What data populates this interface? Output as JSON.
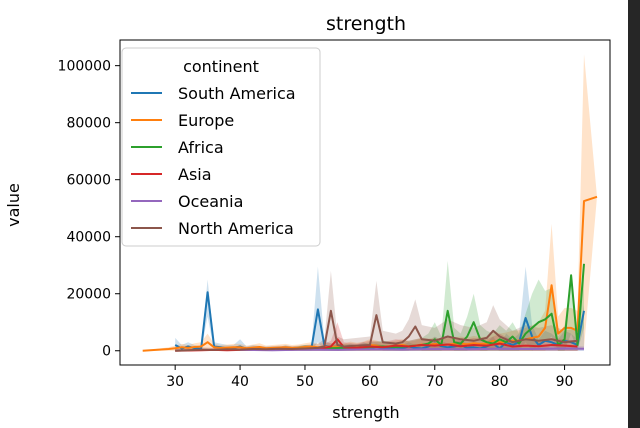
{
  "chart_data": {
    "type": "line",
    "title": "strength",
    "xlabel": "strength",
    "ylabel": "value",
    "xlim": [
      21.5,
      97.0
    ],
    "ylim": [
      -5000,
      109000
    ],
    "xticks": [
      30,
      40,
      50,
      60,
      70,
      80,
      90
    ],
    "yticks": [
      0,
      20000,
      40000,
      60000,
      80000,
      100000
    ],
    "grid": false,
    "legend": {
      "title": "continent",
      "placement": "top-left"
    },
    "series": [
      {
        "name": "South America",
        "color": "#1f77b4",
        "x": [
          30,
          31,
          32,
          33,
          34,
          35,
          36,
          37,
          38,
          39,
          40,
          41,
          42,
          44,
          45,
          46,
          47,
          48,
          49,
          50,
          51,
          52,
          53,
          54,
          55,
          56,
          57,
          58,
          59,
          60,
          61,
          62,
          63,
          64,
          65,
          66,
          67,
          68,
          69,
          70,
          71,
          72,
          73,
          74,
          75,
          76,
          77,
          78,
          79,
          80,
          81,
          82,
          83,
          84,
          85,
          86,
          87,
          88,
          89,
          90,
          91,
          92,
          93
        ],
        "y": [
          2000,
          800,
          1500,
          900,
          600,
          20500,
          1500,
          1200,
          900,
          1000,
          1500,
          700,
          900,
          600,
          700,
          600,
          900,
          700,
          800,
          900,
          1000,
          14500,
          1800,
          1200,
          1600,
          800,
          1200,
          1000,
          1500,
          900,
          1300,
          1000,
          800,
          1200,
          900,
          1500,
          1000,
          800,
          1500,
          2500,
          1600,
          1200,
          1500,
          2000,
          1000,
          1200,
          800,
          1500,
          2500,
          800,
          3000,
          2000,
          3000,
          11500,
          5000,
          2000,
          3500,
          3000,
          2000,
          3500,
          3000,
          2000,
          14000
        ],
        "lower": [
          0,
          0,
          0,
          0,
          0,
          12000,
          0,
          0,
          0,
          0,
          0,
          0,
          0,
          0,
          0,
          0,
          0,
          0,
          0,
          0,
          0,
          3000,
          0,
          0,
          0,
          0,
          0,
          0,
          0,
          0,
          0,
          0,
          0,
          0,
          0,
          0,
          0,
          0,
          0,
          0,
          0,
          0,
          0,
          0,
          0,
          0,
          0,
          0,
          0,
          0,
          0,
          0,
          0,
          3000,
          0,
          0,
          0,
          0,
          0,
          0,
          0,
          0,
          0
        ],
        "upper": [
          4500,
          2000,
          3000,
          2000,
          1500,
          25000,
          3000,
          2500,
          2000,
          2000,
          4000,
          1500,
          2000,
          1500,
          1500,
          1200,
          2000,
          1500,
          1500,
          2000,
          2000,
          29500,
          3500,
          2500,
          3000,
          1500,
          2500,
          2000,
          3000,
          2000,
          2500,
          2000,
          1500,
          2500,
          2000,
          3000,
          2000,
          1500,
          3000,
          5000,
          3500,
          2500,
          3000,
          4000,
          2000,
          2500,
          1500,
          3000,
          5000,
          1500,
          6000,
          4000,
          6000,
          29500,
          9000,
          4000,
          7000,
          6000,
          4000,
          7000,
          6000,
          4000,
          16000
        ]
      },
      {
        "name": "Europe",
        "color": "#ff7f0e",
        "x": [
          25,
          27,
          29,
          30,
          31,
          32,
          33,
          34,
          35,
          36,
          37,
          38,
          39,
          40,
          41,
          42,
          43,
          44,
          45,
          46,
          47,
          48,
          49,
          50,
          51,
          52,
          53,
          54,
          55,
          56,
          57,
          58,
          59,
          60,
          61,
          62,
          63,
          64,
          65,
          66,
          67,
          68,
          69,
          70,
          71,
          72,
          73,
          74,
          75,
          76,
          77,
          78,
          79,
          80,
          81,
          82,
          83,
          84,
          85,
          86,
          87,
          88,
          89,
          90,
          91,
          92,
          93,
          95
        ],
        "y": [
          0,
          300,
          600,
          900,
          1200,
          1000,
          1300,
          1500,
          3000,
          1200,
          1000,
          1100,
          1200,
          1200,
          900,
          1100,
          1300,
          900,
          1000,
          1100,
          1200,
          1000,
          1100,
          1300,
          1500,
          1200,
          1400,
          1300,
          1500,
          1200,
          1600,
          1400,
          1600,
          2000,
          1800,
          1400,
          1600,
          1800,
          2000,
          1600,
          1800,
          2200,
          2000,
          2400,
          2000,
          2200,
          2400,
          2500,
          2300,
          2600,
          2400,
          2500,
          3500,
          3000,
          3200,
          3500,
          3600,
          4000,
          4500,
          5000,
          8000,
          23000,
          6000,
          8000,
          8000,
          7000,
          52500,
          54000
        ],
        "lower": [
          0,
          0,
          0,
          0,
          0,
          0,
          0,
          0,
          0,
          0,
          0,
          0,
          0,
          0,
          0,
          0,
          0,
          0,
          0,
          0,
          0,
          0,
          0,
          0,
          0,
          0,
          0,
          0,
          0,
          0,
          0,
          0,
          0,
          0,
          0,
          0,
          0,
          0,
          0,
          0,
          0,
          0,
          0,
          0,
          0,
          0,
          0,
          0,
          0,
          0,
          0,
          0,
          0,
          0,
          0,
          0,
          0,
          0,
          0,
          0,
          0,
          2000,
          0,
          0,
          0,
          0,
          1000,
          54000
        ],
        "upper": [
          0,
          600,
          1200,
          1800,
          2400,
          2000,
          2600,
          3000,
          6000,
          2400,
          2000,
          2200,
          2400,
          2400,
          1800,
          2200,
          2600,
          1800,
          2000,
          2200,
          2400,
          2000,
          2200,
          2600,
          3000,
          2400,
          2800,
          2600,
          3000,
          2400,
          3200,
          2800,
          3200,
          4000,
          3600,
          2800,
          3200,
          3600,
          4000,
          3200,
          3600,
          4400,
          4000,
          4800,
          4000,
          4400,
          4800,
          5000,
          4600,
          5200,
          4800,
          5000,
          7000,
          6000,
          6400,
          7000,
          7200,
          8000,
          9000,
          10000,
          14000,
          44500,
          12000,
          15000,
          15000,
          14000,
          104000,
          54000
        ]
      },
      {
        "name": "Africa",
        "color": "#2ca02c",
        "x": [
          42,
          44,
          46,
          48,
          50,
          52,
          54,
          56,
          58,
          60,
          62,
          64,
          66,
          68,
          69,
          70,
          71,
          72,
          73,
          74,
          75,
          76,
          77,
          78,
          79,
          80,
          81,
          82,
          83,
          84,
          85,
          86,
          87,
          88,
          89,
          90,
          91,
          92,
          93
        ],
        "y": [
          500,
          400,
          600,
          500,
          800,
          700,
          900,
          1000,
          800,
          1200,
          1500,
          1300,
          1600,
          2000,
          2500,
          4000,
          2000,
          14000,
          3000,
          2500,
          5000,
          10000,
          4000,
          3000,
          2500,
          4000,
          3000,
          5000,
          2500,
          6000,
          8000,
          10000,
          11000,
          13000,
          2000,
          4000,
          26500,
          2000,
          30500
        ],
        "lower": [
          0,
          0,
          0,
          0,
          0,
          0,
          0,
          0,
          0,
          0,
          0,
          0,
          0,
          0,
          0,
          0,
          0,
          2000,
          0,
          0,
          0,
          2000,
          0,
          0,
          0,
          0,
          0,
          0,
          0,
          0,
          0,
          2000,
          3000,
          5000,
          0,
          0,
          6000,
          0,
          8000
        ],
        "upper": [
          1200,
          1000,
          1500,
          1200,
          2000,
          1500,
          2000,
          2500,
          2000,
          3000,
          3500,
          3000,
          3500,
          4500,
          6000,
          10000,
          5000,
          31500,
          8000,
          6000,
          12000,
          20000,
          9000,
          7000,
          6000,
          9000,
          7000,
          10000,
          6000,
          13000,
          20000,
          25000,
          21000,
          22000,
          5000,
          9000,
          26500,
          5000,
          30500
        ]
      },
      {
        "name": "Asia",
        "color": "#d62728",
        "x": [
          30,
          32,
          34,
          36,
          38,
          40,
          42,
          44,
          46,
          48,
          50,
          52,
          54,
          55,
          56,
          58,
          60,
          62,
          64,
          66,
          68,
          70,
          72,
          74,
          76,
          78,
          80,
          82,
          84,
          86,
          88,
          90,
          92
        ],
        "y": [
          0,
          100,
          200,
          300,
          200,
          300,
          400,
          300,
          500,
          400,
          600,
          500,
          1500,
          4000,
          1200,
          1000,
          1500,
          1200,
          1800,
          1500,
          2000,
          1800,
          2200,
          1600,
          2000,
          1800,
          2500,
          1500,
          1800,
          1600,
          2000,
          1800,
          1500
        ],
        "lower": [
          0,
          0,
          0,
          0,
          0,
          0,
          0,
          0,
          0,
          0,
          0,
          0,
          0,
          0,
          0,
          0,
          0,
          0,
          0,
          0,
          0,
          0,
          0,
          0,
          0,
          0,
          0,
          0,
          0,
          0,
          0,
          0,
          0
        ],
        "upper": [
          500,
          600,
          700,
          800,
          700,
          800,
          1000,
          800,
          1200,
          1000,
          1500,
          1200,
          3500,
          10000,
          3000,
          2500,
          3500,
          3000,
          4000,
          3500,
          4500,
          4000,
          5000,
          3500,
          4500,
          4000,
          6000,
          3500,
          4000,
          3500,
          4500,
          4000,
          3500
        ]
      },
      {
        "name": "Oceania",
        "color": "#9467bd",
        "x": [
          40,
          45,
          50,
          55,
          60,
          65,
          70,
          75,
          80,
          85,
          90,
          93
        ],
        "y": [
          300,
          200,
          400,
          300,
          500,
          400,
          600,
          500,
          700,
          600,
          800,
          700
        ],
        "lower": [
          0,
          0,
          0,
          0,
          0,
          0,
          0,
          0,
          0,
          0,
          0,
          0
        ],
        "upper": [
          800,
          600,
          1000,
          800,
          1200,
          1000,
          1400,
          1200,
          1600,
          1400,
          1800,
          1600
        ]
      },
      {
        "name": "North America",
        "color": "#8c564b",
        "x": [
          30,
          32,
          34,
          36,
          38,
          40,
          42,
          44,
          46,
          48,
          50,
          52,
          53,
          54,
          55,
          56,
          58,
          60,
          61,
          62,
          64,
          65,
          66,
          67,
          68,
          70,
          72,
          74,
          76,
          78,
          79,
          80,
          82,
          84,
          86,
          88,
          90,
          92
        ],
        "y": [
          0,
          200,
          400,
          300,
          500,
          400,
          600,
          500,
          700,
          600,
          800,
          1000,
          1500,
          14000,
          2000,
          1500,
          1800,
          2000,
          12500,
          3000,
          2500,
          3000,
          5000,
          8500,
          4000,
          3500,
          5000,
          4000,
          3500,
          4500,
          7000,
          5000,
          3000,
          4000,
          3500,
          4000,
          3000,
          3500
        ],
        "lower": [
          0,
          0,
          0,
          0,
          0,
          0,
          0,
          0,
          0,
          0,
          0,
          0,
          0,
          1000,
          0,
          0,
          0,
          0,
          2000,
          0,
          0,
          0,
          0,
          2000,
          0,
          0,
          0,
          0,
          0,
          0,
          1000,
          0,
          0,
          0,
          0,
          0,
          0,
          0
        ],
        "upper": [
          500,
          800,
          1200,
          1000,
          1400,
          1200,
          1600,
          1400,
          1800,
          1600,
          2000,
          2500,
          4000,
          28000,
          5000,
          4000,
          4500,
          5000,
          24500,
          7000,
          6000,
          7000,
          11000,
          18000,
          9000,
          8000,
          11000,
          9000,
          8000,
          10000,
          16000,
          11000,
          7000,
          9000,
          8000,
          9000,
          7000,
          8000
        ]
      }
    ]
  }
}
